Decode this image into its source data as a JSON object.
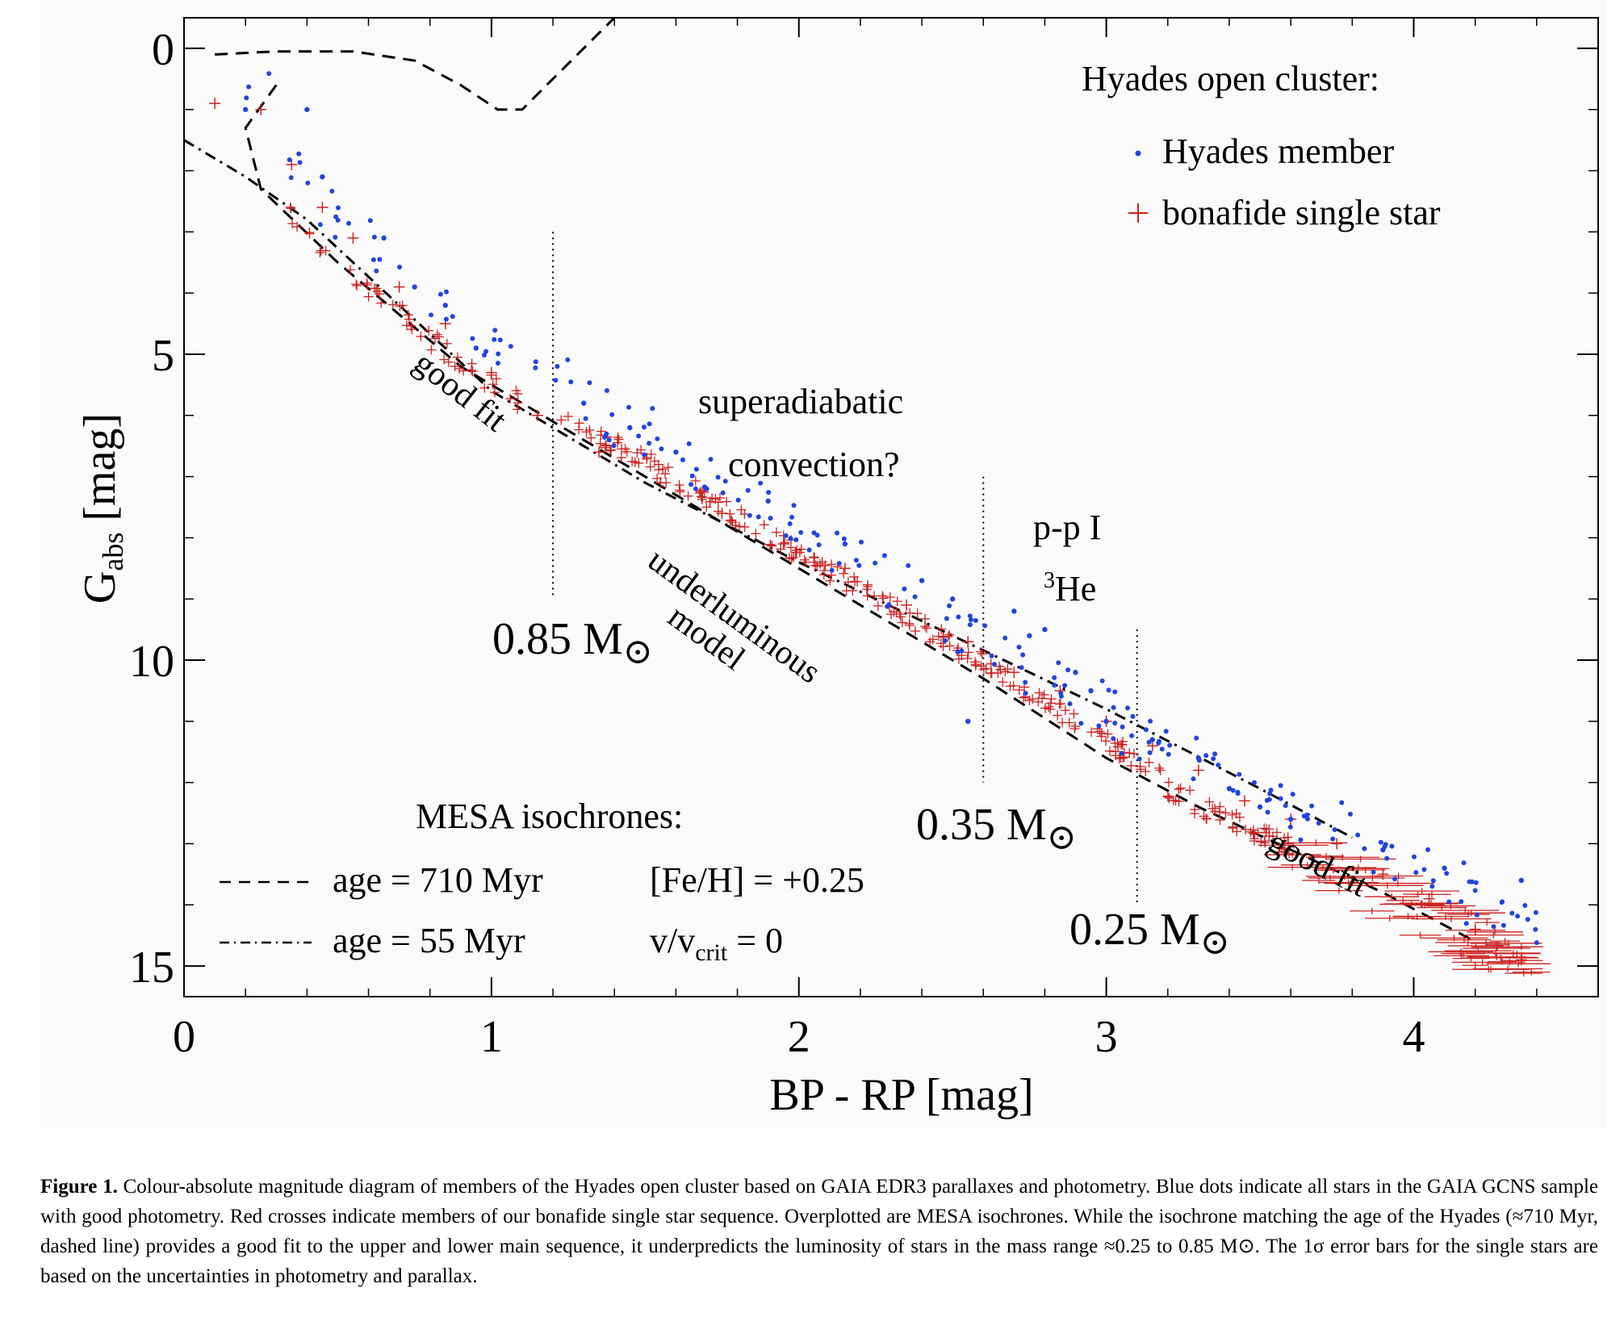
{
  "chart_data": {
    "type": "scatter",
    "title": "",
    "xlabel": "BP - RP [mag]",
    "ylabel_main": "G",
    "ylabel_sub": "abs",
    "ylabel_unit": " [mag]",
    "xlim": [
      0,
      4.6
    ],
    "ylim": [
      15.5,
      -0.5
    ],
    "y_inverted": true,
    "x_ticks": [
      0,
      1,
      2,
      3,
      4
    ],
    "x_tick_labels": [
      "0",
      "1",
      "2",
      "3",
      "4"
    ],
    "y_ticks": [
      0,
      5,
      10,
      15
    ],
    "y_tick_labels": [
      "0",
      "5",
      "10",
      "15"
    ],
    "legend": {
      "title": "Hyades open cluster:",
      "placement": "top-right",
      "entries": [
        {
          "marker": "dot",
          "label": "Hyades member",
          "color": "#2244dd"
        },
        {
          "marker": "cross",
          "label": "bonafide single star",
          "color": "#cc2222"
        }
      ]
    },
    "isochrone_legend": {
      "title": "MESA isochrones:",
      "line1": "age = 710 Myr",
      "line2": "age = 55 Myr",
      "param1": "[Fe/H] = +0.25",
      "param2_main": "v/v",
      "param2_sub": "crit",
      "param2_rest": " = 0"
    },
    "annotations": {
      "good_fit_upper": "good fit",
      "good_fit_lower": "good fit",
      "superadiabatic1": "superadiabatic",
      "superadiabatic2": "convection?",
      "underluminous1": "underluminous",
      "underluminous2": "model",
      "pp1": "p-p I",
      "he3_sup": "3",
      "he3": "He",
      "mass_085": "0.85 M",
      "mass_035": "0.35 M",
      "mass_025": "0.25 M",
      "sun_symbol": "⊙"
    },
    "mass_lines_x": [
      1.2,
      2.6,
      3.1
    ],
    "series": [
      {
        "name": "age = 710 Myr",
        "style": "dashed",
        "x": [
          0.3,
          0.2,
          0.25,
          0.5,
          0.9,
          1.4,
          2.0,
          2.6,
          3.0,
          3.3,
          3.6,
          3.9,
          4.2
        ],
        "y": [
          0.6,
          1.3,
          2.3,
          3.5,
          5.2,
          6.7,
          8.5,
          10.3,
          11.6,
          12.4,
          13.1,
          13.8,
          14.6
        ]
      },
      {
        "name": "age = 710 Myr (giant branch)",
        "style": "dashed",
        "x": [
          0.1,
          0.3,
          0.55,
          0.75,
          0.9,
          1.02,
          1.1,
          1.2,
          1.3,
          1.4
        ],
        "y": [
          0.1,
          0.05,
          0.05,
          0.2,
          0.6,
          1.0,
          1.0,
          0.5,
          0.0,
          -0.5
        ]
      },
      {
        "name": "age = 55 Myr",
        "style": "dashdot",
        "x": [
          0.0,
          0.2,
          0.4,
          0.7,
          1.0,
          1.5,
          2.0,
          2.5,
          3.0,
          3.5,
          3.8
        ],
        "y": [
          1.5,
          2.1,
          2.8,
          4.2,
          5.6,
          7.1,
          8.4,
          9.6,
          10.8,
          12.1,
          12.9
        ]
      }
    ],
    "members_sample": {
      "x": [
        0.2,
        0.4,
        0.45,
        0.65,
        0.75,
        0.85,
        0.95,
        1.3,
        1.45,
        1.6,
        1.7,
        1.9,
        2.15,
        2.4,
        2.5,
        2.55,
        2.7,
        2.75,
        2.8,
        2.9,
        2.95,
        3.0,
        3.15,
        3.3,
        3.4,
        3.5,
        3.6,
        3.9,
        4.1,
        4.35
      ],
      "y": [
        1.0,
        1.0,
        2.1,
        3.1,
        3.9,
        4.2,
        4.9,
        5.8,
        6.2,
        6.6,
        7.2,
        7.4,
        8.1,
        8.7,
        9.0,
        11.0,
        9.2,
        9.6,
        9.5,
        10.2,
        10.5,
        11.0,
        11.3,
        11.6,
        12.1,
        12.4,
        12.6,
        13.1,
        13.4,
        13.6
      ]
    },
    "singles_sample": {
      "x": [
        0.1,
        0.25,
        0.35,
        0.45,
        0.55,
        0.7,
        0.85,
        1.0,
        1.15,
        1.35,
        1.55,
        1.75,
        1.95,
        2.15,
        2.35,
        2.55,
        2.7,
        2.85,
        3.0,
        3.15,
        3.3,
        3.45,
        3.6,
        3.75,
        3.9,
        4.05,
        4.2,
        4.35
      ],
      "y": [
        0.9,
        1.0,
        1.9,
        2.6,
        3.1,
        3.9,
        4.5,
        5.3,
        6.0,
        6.6,
        7.1,
        7.6,
        8.1,
        8.5,
        9.1,
        9.7,
        10.2,
        10.5,
        11.0,
        11.4,
        11.8,
        12.3,
        12.6,
        13.0,
        13.5,
        13.9,
        14.4,
        14.9
      ]
    }
  },
  "caption": {
    "label": "Figure 1.",
    "text": " Colour-absolute magnitude diagram of members of the Hyades open cluster based on GAIA EDR3 parallaxes and photometry. Blue dots indicate all stars in the GAIA GCNS sample with good photometry. Red crosses indicate members of our bonafide single star sequence. Overplotted are MESA isochrones. While the isochrone matching the age of the Hyades (≈710 Myr, dashed line) provides a good fit to the upper and lower main sequence, it underpredicts the luminosity of stars in the mass range ≈0.25 to 0.85 M⊙. The 1σ error bars for the single stars are based on the uncertainties in photometry and parallax."
  }
}
